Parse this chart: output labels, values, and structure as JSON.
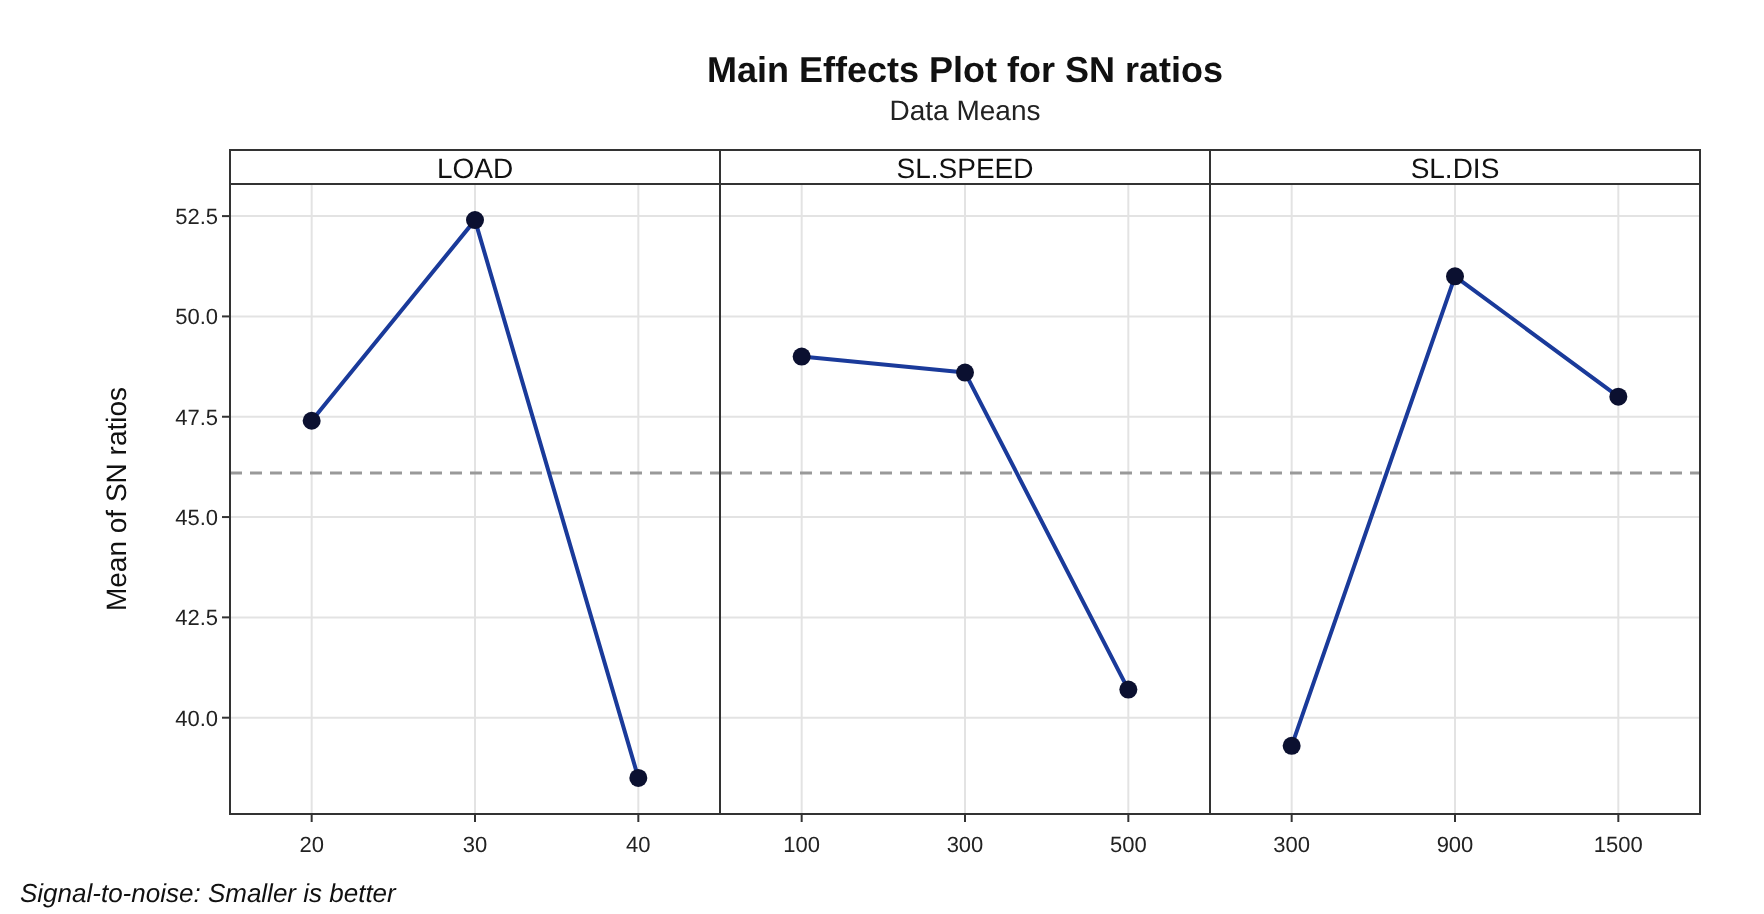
{
  "chart_data": [
    {
      "type": "line",
      "xlabel": "LOAD",
      "ylabel": "Mean of SN ratios",
      "annotations": [
        "Signal-to-noise: Smaller is better"
      ],
      "categories": [
        "20",
        "30",
        "40"
      ],
      "series": [
        {
          "color": "#1a3a9a",
          "values": [
            47.4,
            52.4,
            38.5
          ]
        }
      ],
      "ylim": [
        37.6,
        53.3
      ],
      "yticks": [
        {
          "value": 40,
          "label": "40.0"
        },
        42.5,
        {
          "value": 45,
          "label": "45.0"
        },
        47.5,
        {
          "value": 50,
          "label": "50.0"
        },
        52.5
      ],
      "grid": true,
      "marker": "circle",
      "ref_lines": [
        {
          "axis": "y",
          "value": 46.1,
          "line_style": "dashed",
          "color": "#999999"
        }
      ]
    },
    {
      "type": "line",
      "title": "Main Effects Plot for SN ratios",
      "subtitle": "Data Means",
      "xlabel": "SL.SPEED",
      "categories": [
        "100",
        "300",
        "500"
      ],
      "series": [
        {
          "color": "#1a3a9a",
          "values": [
            49.0,
            48.6,
            40.7
          ]
        }
      ],
      "ylim": [
        37.6,
        53.3
      ],
      "yticks": [
        40,
        42.5,
        45,
        47.5,
        50,
        52.5
      ],
      "tick_labels": "x",
      "grid": true,
      "marker": "circle",
      "ref_lines": [
        {
          "axis": "y",
          "value": 46.1,
          "line_style": "dashed",
          "color": "#999999"
        }
      ]
    },
    {
      "type": "line",
      "xlabel": "SL.DIS",
      "categories": [
        "300",
        "900",
        "1500"
      ],
      "series": [
        {
          "color": "#1a3a9a",
          "values": [
            39.3,
            51.0,
            48.0
          ]
        }
      ],
      "ylim": [
        37.6,
        53.3
      ],
      "yticks": [
        40,
        42.5,
        45,
        47.5,
        50,
        52.5
      ],
      "tick_labels": "x",
      "grid": true,
      "marker": "circle",
      "ref_lines": [
        {
          "axis": "y",
          "value": 46.1,
          "line_style": "dashed",
          "color": "#999999"
        }
      ]
    }
  ]
}
